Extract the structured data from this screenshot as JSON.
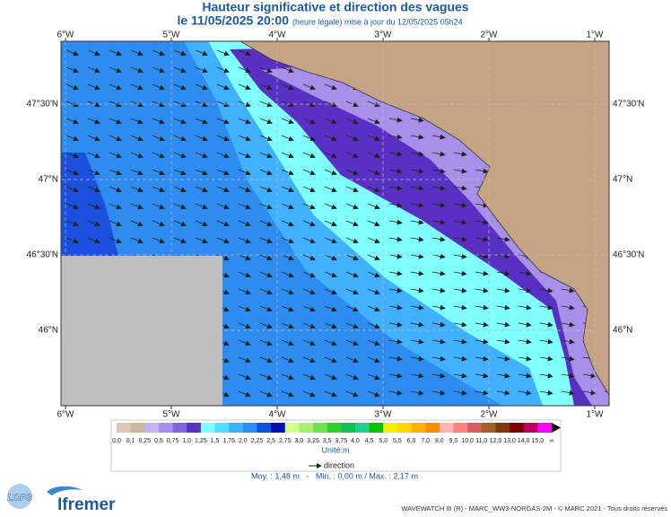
{
  "header": {
    "title": "Hauteur significative et direction des vagues",
    "date": "le 11/05/2025 20:00",
    "update": "(heure légale) mise à jour du 12/05/2025 05h24"
  },
  "axes": {
    "lon": [
      "6°W",
      "5°W",
      "4°W",
      "3°W",
      "2°W",
      "1°W"
    ],
    "lat": [
      "47°30'N",
      "47°N",
      "46°30'N",
      "46°N"
    ]
  },
  "legend": {
    "labels": [
      "0,0",
      "0,1",
      "0,25",
      "0,5",
      "0,75",
      "1,0",
      "1,25",
      "1,5",
      "1,75",
      "2,0",
      "2,25",
      "2,5",
      "2,75",
      "3,0",
      "3,25",
      "3,5",
      "3,75",
      "4,0",
      "4,5",
      "5,0",
      "5,5",
      "6,0",
      "7,0",
      "8,0",
      "9,0",
      "10,0",
      "11,0",
      "12,0",
      "13,0",
      "14,0",
      "15,0",
      "∞"
    ],
    "colors": [
      "#dcc8b4",
      "#cdb6a0",
      "#c6b4ee",
      "#a890ea",
      "#8266dc",
      "#5a30c4",
      "#80ffff",
      "#50e0ff",
      "#38b4ff",
      "#2a8cf4",
      "#1450e0",
      "#0a10b0",
      "#d0ff90",
      "#a8f070",
      "#70e050",
      "#30d030",
      "#10c050",
      "#20d090",
      "#10c000",
      "#f0f000",
      "#ffd800",
      "#ffb000",
      "#ff8c00",
      "#ffb4b4",
      "#ff8080",
      "#d06060",
      "#a06030",
      "#7a3a10",
      "#800000",
      "#c00060",
      "#ff00ff"
    ],
    "unit": "Unité:m",
    "direction": "direction"
  },
  "stats": "Moy. : 1,48 m   -   Min. : 0,00 m / Max. : 2,17 m",
  "logos": {
    "lops": "LOPS",
    "ifremer": "Ifremer"
  },
  "footer": "WAVEWATCH III (R) - MARC_WW3-NORGAS-2M - © MARC 2021 - Tous droits réservés"
}
